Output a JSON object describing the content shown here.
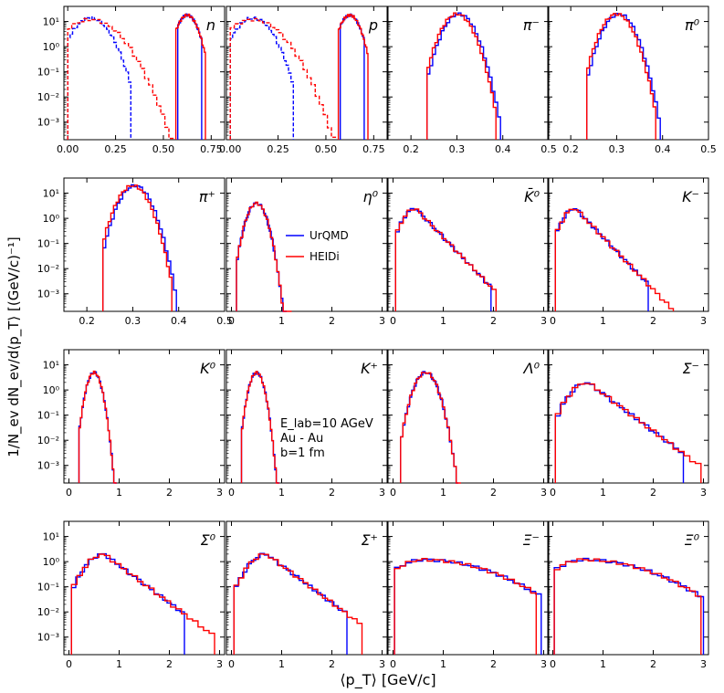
{
  "chart_data": {
    "type": "line",
    "ylabel": "1/N_ev dN_ev/d⟨p_T⟩ [(GeV/c)⁻¹]",
    "xlabel": "⟨p_T⟩ [GeV/c]",
    "yscale": "log",
    "ylim": [
      0.0002,
      40
    ],
    "yticks": [
      "10⁻³",
      "10⁻²",
      "10⁻¹",
      "10⁰",
      "10¹"
    ],
    "legend": {
      "position": "inside η⁰ panel",
      "entries": [
        {
          "name": "UrQMD",
          "color": "#0000ff"
        },
        {
          "name": "HEIDi",
          "color": "#ff0000"
        }
      ]
    },
    "annotation": [
      "E_lab=10 AGeV",
      "Au - Au",
      "b=1 fm"
    ],
    "panels": [
      {
        "label": "n",
        "xlim": [
          -0.02,
          0.82
        ],
        "xticks": [
          "0.00",
          "0.25",
          "0.50",
          "0.75"
        ],
        "series": [
          {
            "name": "UrQMD",
            "peak_x": 0.625,
            "peak_y": 18,
            "width": 0.035,
            "lo": 0.575,
            "hi": 0.7
          },
          {
            "name": "HEIDi",
            "peak_x": 0.625,
            "peak_y": 18,
            "width": 0.035,
            "lo": 0.565,
            "hi": 0.72
          },
          {
            "name": "UrQMD dashed",
            "peak_x": 0.12,
            "peak_y": 14,
            "width": 0.06,
            "lo": 0.0,
            "hi": 0.33,
            "dashed": true
          },
          {
            "name": "HEIDi dashed",
            "peak_x": 0.12,
            "peak_y": 12,
            "width": 0.09,
            "lo": 0.0,
            "hi": 0.55,
            "dashed": true
          }
        ]
      },
      {
        "label": "p",
        "xlim": [
          -0.02,
          0.82
        ],
        "xticks": [
          "0.00",
          "0.25",
          "0.50",
          "0.75"
        ],
        "series": [
          {
            "name": "UrQMD",
            "peak_x": 0.625,
            "peak_y": 18,
            "width": 0.035,
            "lo": 0.575,
            "hi": 0.7
          },
          {
            "name": "HEIDi",
            "peak_x": 0.625,
            "peak_y": 18,
            "width": 0.035,
            "lo": 0.565,
            "hi": 0.72
          },
          {
            "name": "UrQMD dashed",
            "peak_x": 0.12,
            "peak_y": 14,
            "width": 0.06,
            "lo": 0.0,
            "hi": 0.33,
            "dashed": true
          },
          {
            "name": "HEIDi dashed",
            "peak_x": 0.12,
            "peak_y": 12,
            "width": 0.09,
            "lo": 0.0,
            "hi": 0.55,
            "dashed": true
          }
        ]
      },
      {
        "label": "π⁻",
        "xlim": [
          0.15,
          0.5
        ],
        "xticks": [
          "0.2",
          "0.3",
          "0.4",
          "0.5"
        ],
        "series": [
          {
            "name": "UrQMD",
            "peak_x": 0.305,
            "peak_y": 20,
            "width": 0.02,
            "lo": 0.235,
            "hi": 0.395
          },
          {
            "name": "HEIDi",
            "peak_x": 0.3,
            "peak_y": 20,
            "width": 0.02,
            "lo": 0.235,
            "hi": 0.385
          }
        ]
      },
      {
        "label": "π⁰",
        "xlim": [
          0.15,
          0.5
        ],
        "xticks": [
          "0.2",
          "0.3",
          "0.4",
          "0.5"
        ],
        "series": [
          {
            "name": "UrQMD",
            "peak_x": 0.305,
            "peak_y": 20,
            "width": 0.02,
            "lo": 0.235,
            "hi": 0.395
          },
          {
            "name": "HEIDi",
            "peak_x": 0.3,
            "peak_y": 20,
            "width": 0.02,
            "lo": 0.235,
            "hi": 0.385
          }
        ]
      },
      {
        "label": "π⁺",
        "xlim": [
          0.15,
          0.5
        ],
        "xticks": [
          "0.2",
          "0.3",
          "0.4",
          "0.5"
        ],
        "series": [
          {
            "name": "UrQMD",
            "peak_x": 0.305,
            "peak_y": 20,
            "width": 0.02,
            "lo": 0.235,
            "hi": 0.395
          },
          {
            "name": "HEIDi",
            "peak_x": 0.3,
            "peak_y": 20,
            "width": 0.02,
            "lo": 0.235,
            "hi": 0.385
          }
        ]
      },
      {
        "label": "η⁰",
        "xlim": [
          -0.1,
          3.1
        ],
        "xticks": [
          "0",
          "1",
          "2",
          "3"
        ],
        "series": [
          {
            "name": "UrQMD",
            "peak_x": 0.5,
            "peak_y": 4,
            "width": 0.12,
            "lo": 0.1,
            "hi": 1.1
          },
          {
            "name": "HEIDi",
            "peak_x": 0.5,
            "peak_y": 4,
            "width": 0.12,
            "lo": 0.1,
            "hi": 1.2
          }
        ]
      },
      {
        "label": "K̄⁰",
        "xlim": [
          -0.1,
          3.1
        ],
        "xticks": [
          "0",
          "1",
          "2",
          "3"
        ],
        "series": [
          {
            "name": "UrQMD",
            "peak_x": 0.45,
            "peak_y": 2.5,
            "width": 0.25,
            "lo": 0.05,
            "hi": 1.95,
            "tail": true
          },
          {
            "name": "HEIDi",
            "peak_x": 0.45,
            "peak_y": 2.5,
            "width": 0.25,
            "lo": 0.05,
            "hi": 2.05,
            "tail": true
          }
        ]
      },
      {
        "label": "K⁻",
        "xlim": [
          -0.1,
          3.1
        ],
        "xticks": [
          "0",
          "1",
          "2",
          "3"
        ],
        "series": [
          {
            "name": "UrQMD",
            "peak_x": 0.45,
            "peak_y": 2.5,
            "width": 0.25,
            "lo": 0.05,
            "hi": 1.9,
            "tail": true
          },
          {
            "name": "HEIDi",
            "peak_x": 0.45,
            "peak_y": 2.5,
            "width": 0.25,
            "lo": 0.05,
            "hi": 2.4,
            "tail": true
          }
        ]
      },
      {
        "label": "K⁰",
        "xlim": [
          -0.1,
          3.1
        ],
        "xticks": [
          "0",
          "1",
          "2",
          "3"
        ],
        "series": [
          {
            "name": "UrQMD",
            "peak_x": 0.5,
            "peak_y": 5,
            "width": 0.09,
            "lo": 0.2,
            "hi": 0.95
          },
          {
            "name": "HEIDi",
            "peak_x": 0.5,
            "peak_y": 5,
            "width": 0.09,
            "lo": 0.2,
            "hi": 0.95
          }
        ]
      },
      {
        "label": "K⁺",
        "xlim": [
          -0.1,
          3.1
        ],
        "xticks": [
          "0",
          "1",
          "2",
          "3"
        ],
        "series": [
          {
            "name": "UrQMD",
            "peak_x": 0.5,
            "peak_y": 5,
            "width": 0.09,
            "lo": 0.2,
            "hi": 0.95
          },
          {
            "name": "HEIDi",
            "peak_x": 0.5,
            "peak_y": 5,
            "width": 0.09,
            "lo": 0.2,
            "hi": 0.95
          }
        ]
      },
      {
        "label": "Λ⁰",
        "xlim": [
          -0.1,
          3.1
        ],
        "xticks": [
          "0",
          "1",
          "2",
          "3"
        ],
        "series": [
          {
            "name": "UrQMD",
            "peak_x": 0.65,
            "peak_y": 5,
            "width": 0.14,
            "lo": 0.15,
            "hi": 1.3
          },
          {
            "name": "HEIDi",
            "peak_x": 0.65,
            "peak_y": 5,
            "width": 0.14,
            "lo": 0.15,
            "hi": 1.35
          }
        ]
      },
      {
        "label": "Σ⁻",
        "xlim": [
          -0.1,
          3.1
        ],
        "xticks": [
          "0",
          "1",
          "2",
          "3"
        ],
        "series": [
          {
            "name": "UrQMD",
            "peak_x": 0.7,
            "peak_y": 2,
            "width": 0.35,
            "lo": 0.05,
            "hi": 2.6,
            "tail": true
          },
          {
            "name": "HEIDi",
            "peak_x": 0.7,
            "peak_y": 2,
            "width": 0.35,
            "lo": 0.05,
            "hi": 2.95,
            "tail": true
          }
        ]
      },
      {
        "label": "Σ⁰",
        "xlim": [
          -0.1,
          3.1
        ],
        "xticks": [
          "0",
          "1",
          "2",
          "3"
        ],
        "series": [
          {
            "name": "UrQMD",
            "peak_x": 0.7,
            "peak_y": 2,
            "width": 0.35,
            "lo": 0.05,
            "hi": 2.3,
            "tail": true
          },
          {
            "name": "HEIDi",
            "peak_x": 0.7,
            "peak_y": 2,
            "width": 0.35,
            "lo": 0.05,
            "hi": 2.9,
            "tail": true
          }
        ]
      },
      {
        "label": "Σ⁺",
        "xlim": [
          -0.1,
          3.1
        ],
        "xticks": [
          "0",
          "1",
          "2",
          "3"
        ],
        "series": [
          {
            "name": "UrQMD",
            "peak_x": 0.7,
            "peak_y": 2,
            "width": 0.35,
            "lo": 0.05,
            "hi": 2.3,
            "tail": true
          },
          {
            "name": "HEIDi",
            "peak_x": 0.7,
            "peak_y": 2,
            "width": 0.35,
            "lo": 0.05,
            "hi": 2.6,
            "tail": true
          }
        ]
      },
      {
        "label": "Ξ⁻",
        "xlim": [
          -0.1,
          3.1
        ],
        "xticks": [
          "0",
          "1",
          "2",
          "3"
        ],
        "series": [
          {
            "name": "UrQMD",
            "peak_x": 0.6,
            "peak_y": 1.2,
            "width": 0.7,
            "lo": 0.03,
            "hi": 2.95,
            "broad": true
          },
          {
            "name": "HEIDi",
            "peak_x": 0.6,
            "peak_y": 1.2,
            "width": 0.7,
            "lo": 0.03,
            "hi": 2.85,
            "broad": true
          }
        ]
      },
      {
        "label": "Ξ⁰",
        "xlim": [
          -0.1,
          3.1
        ],
        "xticks": [
          "0",
          "1",
          "2",
          "3"
        ],
        "series": [
          {
            "name": "UrQMD",
            "peak_x": 0.6,
            "peak_y": 1.2,
            "width": 0.7,
            "lo": 0.03,
            "hi": 3.0,
            "broad": true
          },
          {
            "name": "HEIDi",
            "peak_x": 0.6,
            "peak_y": 1.2,
            "width": 0.7,
            "lo": 0.03,
            "hi": 2.95,
            "broad": true
          }
        ]
      }
    ]
  }
}
